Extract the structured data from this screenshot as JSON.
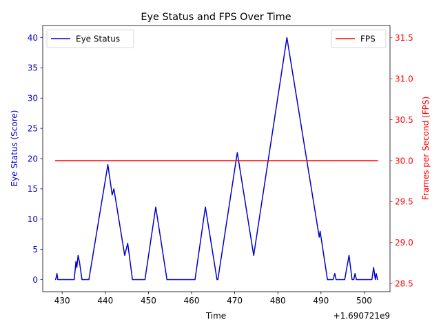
{
  "chart_data": {
    "type": "line",
    "title": "Eye Status and FPS Over Time",
    "xlabel": "Time",
    "x_offset_label": "+1.690721e9",
    "x_ticks": [
      430,
      440,
      450,
      460,
      470,
      480,
      490,
      500
    ],
    "xlim": [
      425.5,
      506
    ],
    "left_axis": {
      "label": "Eye Status (Score)",
      "color": "#0000cc",
      "ylim": [
        -2,
        42
      ],
      "ticks": [
        0,
        5,
        10,
        15,
        20,
        25,
        30,
        35,
        40
      ]
    },
    "right_axis": {
      "label": "Frames per Second (FPS)",
      "color": "#ff0000",
      "ylim": [
        28.4,
        31.65
      ],
      "ticks": [
        "28.5",
        "29.0",
        "29.5",
        "30.0",
        "30.5",
        "31.0",
        "31.5"
      ]
    },
    "series": [
      {
        "name": "Eye Status",
        "axis": "left",
        "color": "#0000cc",
        "points": [
          [
            428.5,
            0
          ],
          [
            428.8,
            1
          ],
          [
            429.0,
            0
          ],
          [
            429.5,
            0
          ],
          [
            432.8,
            0
          ],
          [
            433.2,
            3
          ],
          [
            433.4,
            2
          ],
          [
            433.7,
            4
          ],
          [
            434.0,
            3
          ],
          [
            434.6,
            0
          ],
          [
            436.2,
            0
          ],
          [
            440.6,
            19
          ],
          [
            441.6,
            14
          ],
          [
            442.0,
            15
          ],
          [
            444.5,
            4
          ],
          [
            445.2,
            6
          ],
          [
            446.3,
            0
          ],
          [
            449.2,
            0
          ],
          [
            451.7,
            12
          ],
          [
            454.3,
            0
          ],
          [
            460.8,
            0
          ],
          [
            463.2,
            12
          ],
          [
            465.9,
            0
          ],
          [
            466.1,
            0
          ],
          [
            470.6,
            21
          ],
          [
            474.4,
            4
          ],
          [
            482.1,
            40
          ],
          [
            489.6,
            7
          ],
          [
            489.8,
            8
          ],
          [
            491.5,
            0
          ],
          [
            492.8,
            0
          ],
          [
            493.2,
            1
          ],
          [
            493.5,
            0
          ],
          [
            495.5,
            0
          ],
          [
            496.5,
            4
          ],
          [
            497.2,
            0
          ],
          [
            497.6,
            0
          ],
          [
            497.9,
            1
          ],
          [
            498.2,
            0
          ],
          [
            501.8,
            0
          ],
          [
            502.2,
            2
          ],
          [
            502.6,
            0
          ],
          [
            502.8,
            1
          ],
          [
            503.1,
            0
          ]
        ]
      },
      {
        "name": "FPS",
        "axis": "right",
        "color": "#ff0000",
        "points": [
          [
            428.5,
            30.0
          ],
          [
            503.1,
            30.0
          ]
        ]
      }
    ],
    "legends": [
      {
        "position": "upper-left",
        "label": "Eye Status",
        "color": "#0000cc"
      },
      {
        "position": "upper-right",
        "label": "FPS",
        "color": "#ff0000"
      }
    ],
    "grid": false
  }
}
